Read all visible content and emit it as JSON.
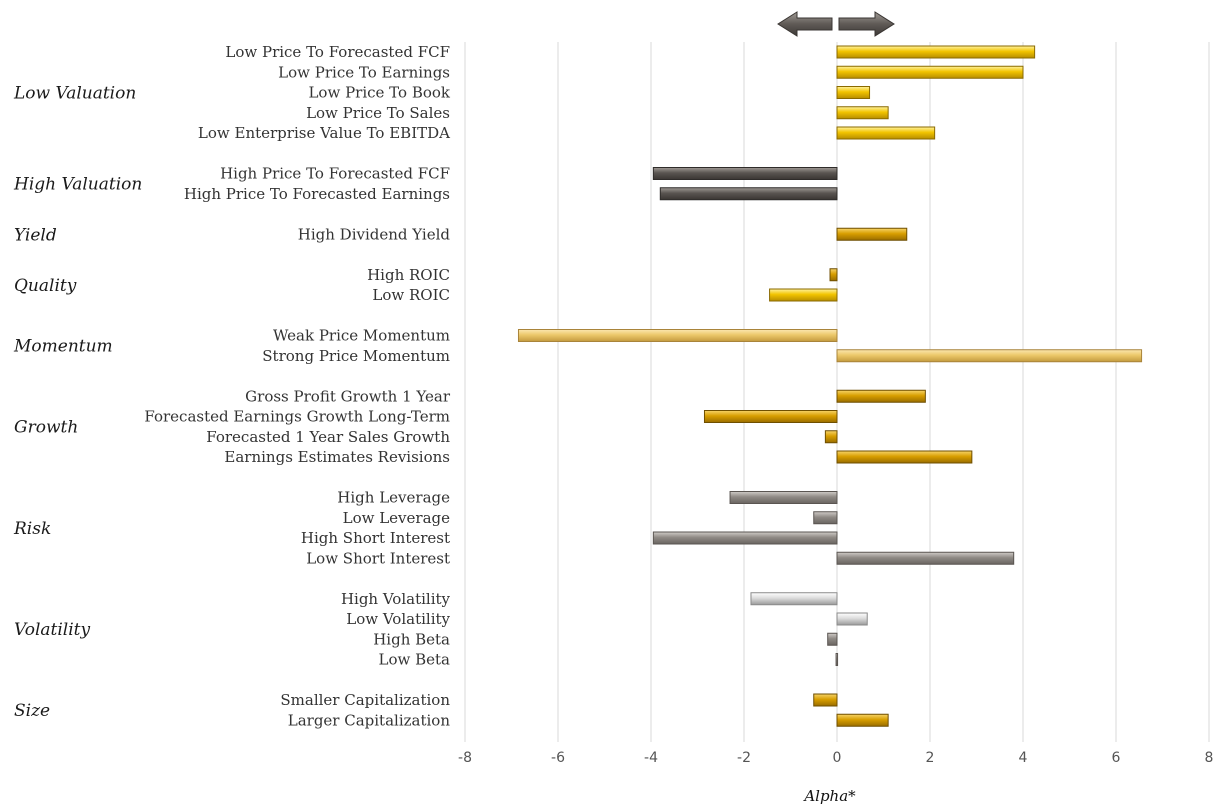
{
  "chart_data": {
    "type": "bar",
    "orientation": "horizontal",
    "xlabel": "Alpha*",
    "xlim": [
      -8,
      8
    ],
    "xticks": [
      -8,
      -6,
      -4,
      -2,
      0,
      2,
      4,
      6,
      8
    ],
    "grid": true,
    "legend": "none",
    "direction_arrows": {
      "left": "arrow-left-icon",
      "right": "arrow-right-icon"
    },
    "colors": {
      "gold": "#efc000",
      "deep-gold": "#d39a00",
      "pale-gold": "#ecc86a",
      "dark-gray": "#5a5551",
      "gray": "#8f8a85",
      "light-gray": "#c9c9c9"
    },
    "groups": [
      {
        "name": "Low Valuation",
        "items": [
          {
            "label": "Low Price To Forecasted FCF",
            "value": 4.25,
            "color": "gold"
          },
          {
            "label": "Low Price To Earnings",
            "value": 4.0,
            "color": "gold"
          },
          {
            "label": "Low Price To Book",
            "value": 0.7,
            "color": "gold"
          },
          {
            "label": "Low Price To Sales",
            "value": 1.1,
            "color": "gold"
          },
          {
            "label": "Low Enterprise Value To EBITDA",
            "value": 2.1,
            "color": "gold"
          }
        ]
      },
      {
        "name": "High Valuation",
        "items": [
          {
            "label": "High Price To Forecasted FCF",
            "value": -3.95,
            "color": "dark-gray"
          },
          {
            "label": "High Price To Forecasted Earnings",
            "value": -3.8,
            "color": "dark-gray"
          }
        ]
      },
      {
        "name": "Yield",
        "items": [
          {
            "label": "High Dividend Yield",
            "value": 1.5,
            "color": "deep-gold"
          }
        ]
      },
      {
        "name": "Quality",
        "items": [
          {
            "label": "High ROIC",
            "value": -0.15,
            "color": "deep-gold"
          },
          {
            "label": "Low ROIC",
            "value": -1.45,
            "color": "gold"
          }
        ]
      },
      {
        "name": "Momentum",
        "items": [
          {
            "label": "Weak Price Momentum",
            "value": -6.85,
            "color": "pale-gold"
          },
          {
            "label": "Strong Price Momentum",
            "value": 6.55,
            "color": "pale-gold"
          }
        ]
      },
      {
        "name": "Growth",
        "items": [
          {
            "label": "Gross Profit Growth 1 Year",
            "value": 1.9,
            "color": "deep-gold"
          },
          {
            "label": "Forecasted Earnings Growth Long-Term",
            "value": -2.85,
            "color": "deep-gold"
          },
          {
            "label": "Forecasted 1 Year Sales Growth",
            "value": -0.25,
            "color": "deep-gold"
          },
          {
            "label": "Earnings Estimates Revisions",
            "value": 2.9,
            "color": "deep-gold"
          }
        ]
      },
      {
        "name": "Risk",
        "items": [
          {
            "label": "High Leverage",
            "value": -2.3,
            "color": "gray"
          },
          {
            "label": "Low Leverage",
            "value": -0.5,
            "color": "gray"
          },
          {
            "label": "High Short Interest",
            "value": -3.95,
            "color": "gray"
          },
          {
            "label": "Low Short Interest",
            "value": 3.8,
            "color": "gray"
          }
        ]
      },
      {
        "name": "Volatility",
        "items": [
          {
            "label": "High Volatility",
            "value": -1.85,
            "color": "light-gray"
          },
          {
            "label": "Low Volatility",
            "value": 0.65,
            "color": "light-gray"
          },
          {
            "label": "High Beta",
            "value": -0.2,
            "color": "gray"
          },
          {
            "label": "Low Beta",
            "value": -0.02,
            "color": "gray"
          }
        ]
      },
      {
        "name": "Size",
        "items": [
          {
            "label": "Smaller Capitalization",
            "value": -0.5,
            "color": "deep-gold"
          },
          {
            "label": "Larger Capitalization",
            "value": 1.1,
            "color": "deep-gold"
          }
        ]
      }
    ]
  }
}
